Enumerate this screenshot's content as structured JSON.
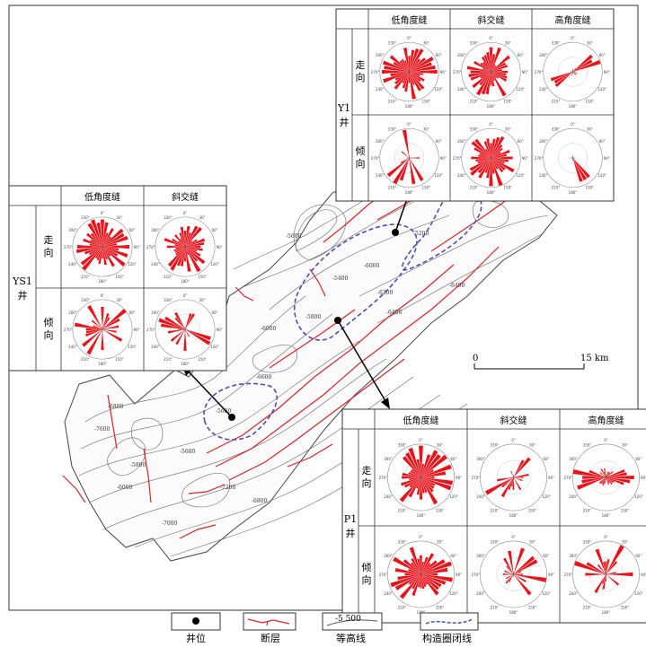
{
  "wells": {
    "y1": {
      "name": "Y1",
      "well_char": "井",
      "columns": [
        "低角度缝",
        "斜交缝",
        "高角度缝"
      ],
      "rows": [
        {
          "label": "走向",
          "label_chars": [
            "走",
            "向"
          ],
          "roses": [
            "strike-low",
            "strike-oblique",
            "strike-high"
          ]
        },
        {
          "label": "倾向",
          "label_chars": [
            "倾",
            "向"
          ],
          "roses": [
            "dip-low",
            "dip-oblique",
            "dip-high"
          ]
        }
      ]
    },
    "ys1": {
      "name": "YS1",
      "well_char": "井",
      "columns": [
        "低角度缝",
        "斜交缝"
      ],
      "rows": [
        {
          "label": "走向",
          "label_chars": [
            "走",
            "向"
          ],
          "roses": [
            "strike-low",
            "strike-oblique"
          ]
        },
        {
          "label": "倾向",
          "label_chars": [
            "倾",
            "向"
          ],
          "roses": [
            "dip-low",
            "dip-oblique"
          ]
        }
      ]
    },
    "p1": {
      "name": "P1",
      "well_char": "井",
      "columns": [
        "低角度缝",
        "斜交缝",
        "高角度缝"
      ],
      "rows": [
        {
          "label": "走向",
          "label_chars": [
            "走",
            "向"
          ],
          "roses": [
            "strike-low",
            "strike-oblique",
            "strike-high"
          ]
        },
        {
          "label": "倾向",
          "label_chars": [
            "倾",
            "向"
          ],
          "roses": [
            "dip-low",
            "dip-oblique",
            "dip-high"
          ]
        }
      ]
    }
  },
  "rose_ticks": [
    "0°",
    "30°",
    "60°",
    "90°",
    "120°",
    "150°",
    "180°",
    "210°",
    "240°",
    "270°",
    "300°",
    "330°"
  ],
  "contour_labels": [
    "-5200",
    "-5200",
    "-5400",
    "-5600",
    "-5600",
    "-5800",
    "-6000",
    "-6000",
    "-6200",
    "-6400",
    "-6400",
    "-6600",
    "-6800",
    "-6800",
    "-7000",
    "-7200",
    "-7600",
    "-5600",
    "-5800",
    "-6000"
  ],
  "scale_bar": {
    "start": "0",
    "end": "15 km"
  },
  "legend": {
    "well": "井位",
    "fault": "断层",
    "contour": "等高线",
    "contour_sample": "-5 500",
    "closure": "构造圈闭线"
  },
  "colors": {
    "rose_fill": "#e8141b",
    "fault": "#d9232b",
    "closure": "#4a4fb0",
    "contour": "#555555",
    "frame": "#333333"
  }
}
